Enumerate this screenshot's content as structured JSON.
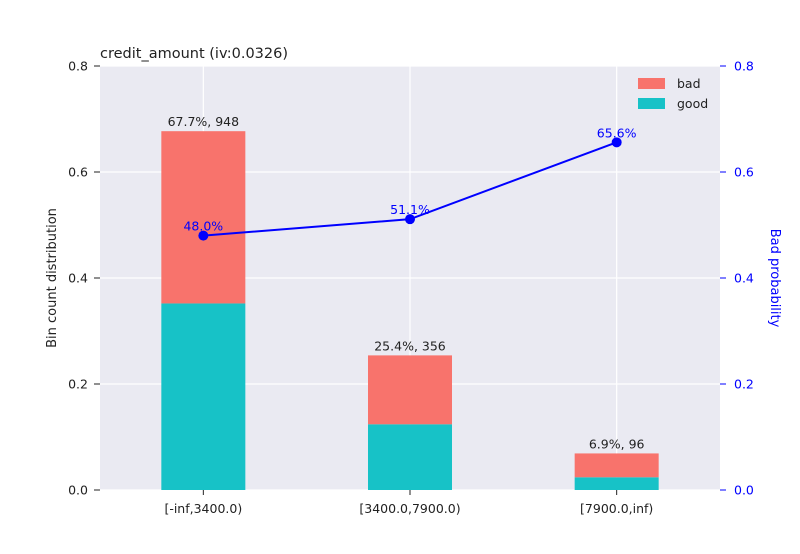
{
  "chart_data": {
    "type": "bar",
    "title": "credit_amount  (iv:0.0326)",
    "xlabel": "",
    "ylabel": "Bin count distribution",
    "y2label": "Bad probability",
    "categories": [
      "[-inf,3400.0)",
      "[3400.0,7900.0)",
      "[7900.0,inf)"
    ],
    "ylim": [
      0,
      0.8
    ],
    "yticks": [
      "0.0",
      "0.2",
      "0.4",
      "0.6",
      "0.8"
    ],
    "y2lim": [
      0,
      0.8
    ],
    "y2ticks": [
      "0.0",
      "0.2",
      "0.4",
      "0.6",
      "0.8"
    ],
    "series": [
      {
        "name": "good",
        "values": [
          0.352,
          0.124,
          0.024
        ],
        "color": "#17c2c7"
      },
      {
        "name": "bad",
        "values": [
          0.325,
          0.13,
          0.045
        ],
        "color": "#f8736c"
      }
    ],
    "bar_labels": [
      "67.7%, 948",
      "25.4%, 356",
      "6.9%, 96"
    ],
    "line": {
      "values": [
        0.48,
        0.511,
        0.656
      ],
      "labels": [
        "48.0%",
        "51.1%",
        "65.6%"
      ],
      "color": "#0000ff"
    },
    "legend": {
      "placement": "top-right",
      "entries": [
        "bad",
        "good"
      ]
    },
    "grid": true,
    "colors": {
      "plot_bg": "#eaeaf2",
      "grid": "#ffffff",
      "right_axis": "#0000ff",
      "text": "#222222"
    }
  }
}
